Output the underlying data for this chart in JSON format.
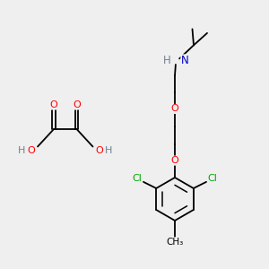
{
  "bg_color": "#efefef",
  "atom_colors": {
    "C": "#000000",
    "H": "#708090",
    "O": "#ff0000",
    "N": "#0000cd",
    "Cl": "#00aa00"
  },
  "bond_color": "#000000",
  "bond_width": 1.3,
  "fig_width": 3.0,
  "fig_height": 3.0,
  "dpi": 100,
  "xlim": [
    0,
    10
  ],
  "ylim": [
    0,
    10
  ]
}
